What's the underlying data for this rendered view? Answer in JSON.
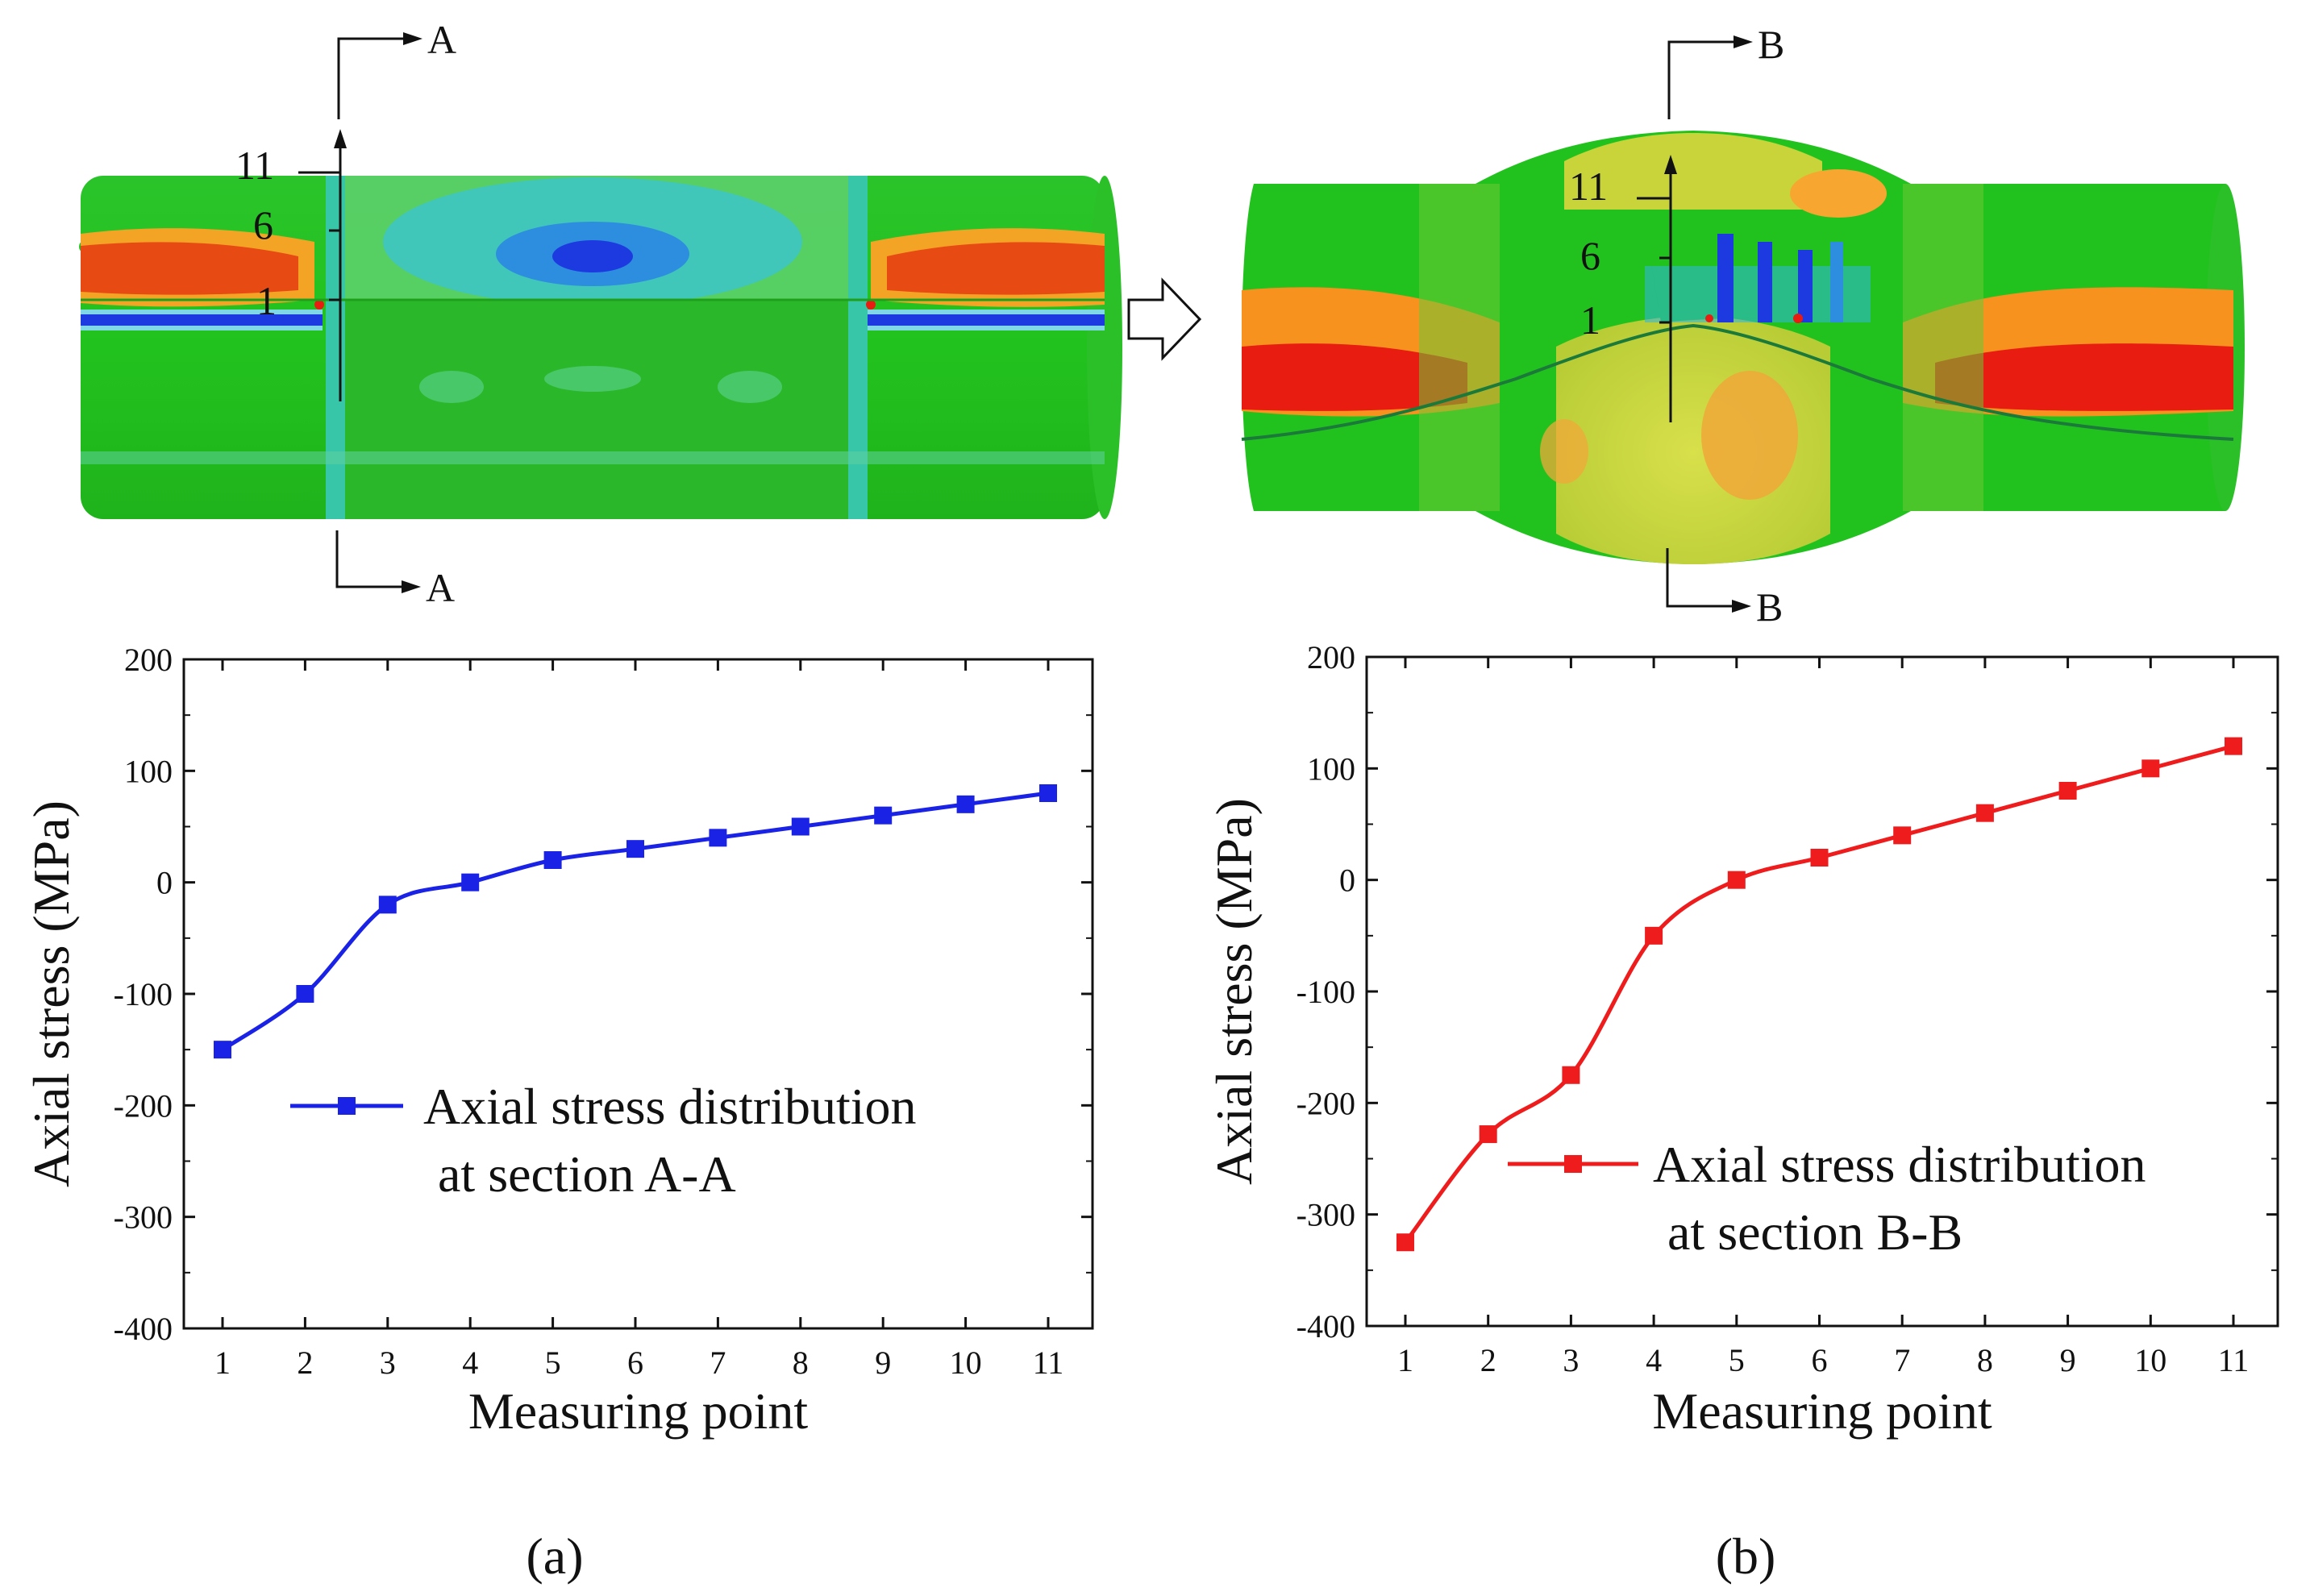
{
  "colors": {
    "series_a": "#1a22e6",
    "series_b": "#ee1c1c",
    "fe_green": "#22c21e",
    "fe_red": "#e83a10",
    "fe_orange": "#f7921e",
    "fe_yellow": "#c8d43a",
    "fe_blue": "#1c3ae0",
    "fe_cyan": "#24c6e0"
  },
  "models": {
    "a": {
      "section_label": "A",
      "point_labels": [
        "11",
        "6",
        "1"
      ]
    },
    "b": {
      "section_label": "B",
      "point_labels": [
        "11",
        "6",
        "1"
      ]
    }
  },
  "chart_data": [
    {
      "type": "line",
      "panel": "(a)",
      "xlabel": "Measuring point",
      "ylabel": "Axial stress (MPa)",
      "categories": [
        1,
        2,
        3,
        4,
        5,
        6,
        7,
        8,
        9,
        10,
        11
      ],
      "x_ticks": [
        "1",
        "2",
        "3",
        "4",
        "5",
        "6",
        "7",
        "8",
        "9",
        "10",
        "11"
      ],
      "ylim": [
        -400,
        200
      ],
      "y_ticks": [
        "-400",
        "-300",
        "-200",
        "-100",
        "0",
        "100",
        "200"
      ],
      "series": [
        {
          "name": "Axial stress distribution",
          "name_line2": "at section A-A",
          "values": [
            -150,
            -100,
            -20,
            0,
            20,
            30,
            40,
            50,
            60,
            70,
            80
          ]
        }
      ],
      "legend": "center"
    },
    {
      "type": "line",
      "panel": "(b)",
      "xlabel": "Measuring point",
      "ylabel": "Axial stress (MPa)",
      "categories": [
        1,
        2,
        3,
        4,
        5,
        6,
        7,
        8,
        9,
        10,
        11
      ],
      "x_ticks": [
        "1",
        "2",
        "3",
        "4",
        "5",
        "6",
        "7",
        "8",
        "9",
        "10",
        "11"
      ],
      "ylim": [
        -400,
        200
      ],
      "y_ticks": [
        "-400",
        "-300",
        "-200",
        "-100",
        "0",
        "100",
        "200"
      ],
      "series": [
        {
          "name": "Axial stress distribution",
          "name_line2": "at section B-B",
          "values": [
            -325,
            -228,
            -175,
            -50,
            0,
            20,
            40,
            60,
            80,
            100,
            120
          ]
        }
      ],
      "legend": "center"
    }
  ]
}
